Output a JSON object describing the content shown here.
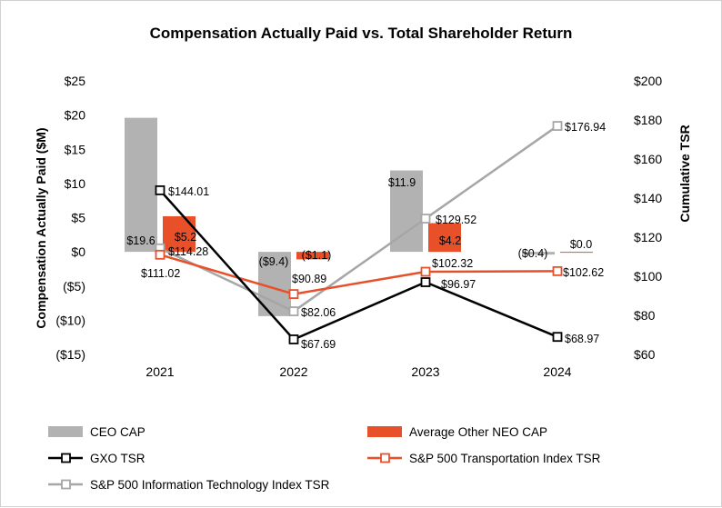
{
  "chart_data": {
    "type": "bar",
    "title": "Compensation Actually Paid vs. Total Shareholder Return",
    "categories": [
      "2021",
      "2022",
      "2023",
      "2024"
    ],
    "ylabel": "Compensation Actually Paid ($M)",
    "ylabel_right": "Cumulative TSR",
    "ylim": [
      -15,
      25
    ],
    "ylim_right": [
      60,
      200
    ],
    "y_ticks": [
      {
        "value": 25,
        "label": "$25"
      },
      {
        "value": 20,
        "label": "$20"
      },
      {
        "value": 15,
        "label": "$15"
      },
      {
        "value": 10,
        "label": "$10"
      },
      {
        "value": 5,
        "label": "$5"
      },
      {
        "value": 0,
        "label": "$0"
      },
      {
        "value": -5,
        "label": "($5)"
      },
      {
        "value": -10,
        "label": "($10)"
      },
      {
        "value": -15,
        "label": "($15)"
      }
    ],
    "y_ticks_right": [
      {
        "value": 200,
        "label": "$200"
      },
      {
        "value": 180,
        "label": "$180"
      },
      {
        "value": 160,
        "label": "$160"
      },
      {
        "value": 140,
        "label": "$140"
      },
      {
        "value": 120,
        "label": "$120"
      },
      {
        "value": 100,
        "label": "$100"
      },
      {
        "value": 80,
        "label": "$80"
      },
      {
        "value": 60,
        "label": "$60"
      }
    ],
    "bar_series": [
      {
        "name": "CEO CAP",
        "color": "#b2b2b2",
        "values": [
          19.6,
          -9.4,
          11.9,
          -0.4
        ],
        "labels": [
          "$19.6",
          "($9.4)",
          "$11.9",
          "($0.4)"
        ]
      },
      {
        "name": "Average Other NEO CAP",
        "color": "#e8502a",
        "values": [
          5.2,
          -1.1,
          4.2,
          0.0
        ],
        "labels": [
          "$5.2",
          "($1.1)",
          "$4.2",
          "$0.0"
        ]
      }
    ],
    "line_series": [
      {
        "name": "GXO TSR",
        "color": "#000000",
        "values": [
          144.01,
          67.69,
          96.97,
          68.97
        ],
        "labels": [
          "$144.01",
          "$67.69",
          "$96.97",
          "$68.97"
        ]
      },
      {
        "name": "S&P 500 Transportation Index TSR",
        "color": "#e8502a",
        "values": [
          111.02,
          90.89,
          102.32,
          102.62
        ],
        "labels": [
          "$111.02",
          "$90.89",
          "$102.32",
          "$102.62"
        ]
      },
      {
        "name": "S&P 500 Information Technology Index TSR",
        "color": "#a6a6a6",
        "values": [
          114.28,
          82.06,
          129.52,
          176.94
        ],
        "labels": [
          "$114.28",
          "$82.06",
          "$129.52",
          "$176.94"
        ]
      }
    ],
    "grid": false,
    "legend_position": "bottom"
  }
}
